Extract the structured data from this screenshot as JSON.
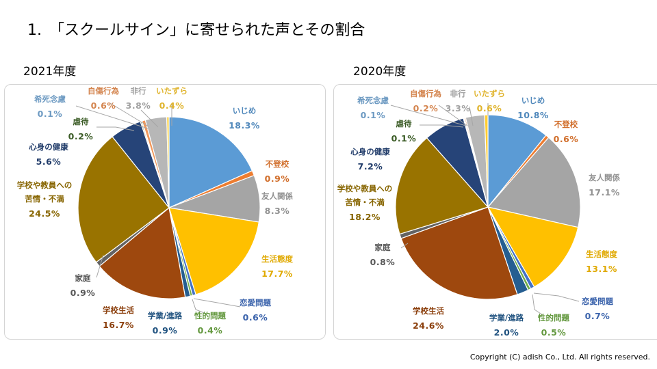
{
  "heading": "1.　「スクールサイン」に寄せられた声とその割合",
  "copyright": "Copyright (C) adish Co., Ltd. All rights reserved.",
  "chart_data": [
    {
      "type": "pie",
      "title": "2021年度",
      "categories": [
        "いじめ",
        "不登校",
        "友人関係",
        "生活態度",
        "恋愛問題",
        "性的問題",
        "学業/進路",
        "学校生活",
        "家庭",
        "学校や教員への苦情・不満",
        "心身の健康",
        "虐待",
        "希死念慮",
        "自傷行為",
        "非行",
        "いたずら"
      ],
      "values": [
        18.3,
        0.9,
        8.3,
        17.7,
        0.6,
        0.4,
        0.9,
        16.7,
        0.9,
        24.5,
        5.6,
        0.2,
        0.1,
        0.6,
        3.8,
        0.4
      ],
      "value_labels": [
        "18.3%",
        "0.9%",
        "8.3%",
        "17.7%",
        "0.6%",
        "0.4%",
        "0.9%",
        "16.7%",
        "0.9%",
        "24.5%",
        "5.6%",
        "0.2%",
        "0.1%",
        "0.6%",
        "3.8%",
        "0.4%"
      ],
      "colors": [
        "#5B9BD5",
        "#ED7D31",
        "#A5A5A5",
        "#FFC000",
        "#4472C4",
        "#70AD47",
        "#255E91",
        "#9E480E",
        "#636363",
        "#997300",
        "#264478",
        "#43682B",
        "#7CAFDD",
        "#F1975A",
        "#B7B7B7",
        "#FFCD33"
      ]
    },
    {
      "type": "pie",
      "title": "2020年度",
      "categories": [
        "いじめ",
        "不登校",
        "友人関係",
        "生活態度",
        "恋愛問題",
        "性的問題",
        "学業/進路",
        "学校生活",
        "家庭",
        "学校や教員への苦情・不満",
        "心身の健康",
        "虐待",
        "希死念慮",
        "自傷行為",
        "非行",
        "いたずら"
      ],
      "values": [
        10.8,
        0.6,
        17.1,
        13.1,
        0.7,
        0.5,
        2.0,
        24.6,
        0.8,
        18.2,
        7.2,
        0.1,
        0.1,
        0.2,
        3.3,
        0.6
      ],
      "value_labels": [
        "10.8%",
        "0.6%",
        "17.1%",
        "13.1%",
        "0.7%",
        "0.5%",
        "2.0%",
        "24.6%",
        "0.8%",
        "18.2%",
        "7.2%",
        "0.1%",
        "0.1%",
        "0.2%",
        "3.3%",
        "0.6%"
      ],
      "colors": [
        "#5B9BD5",
        "#ED7D31",
        "#A5A5A5",
        "#FFC000",
        "#4472C4",
        "#70AD47",
        "#255E91",
        "#9E480E",
        "#636363",
        "#997300",
        "#264478",
        "#43682B",
        "#7CAFDD",
        "#F1975A",
        "#B7B7B7",
        "#FFCD33"
      ]
    }
  ]
}
